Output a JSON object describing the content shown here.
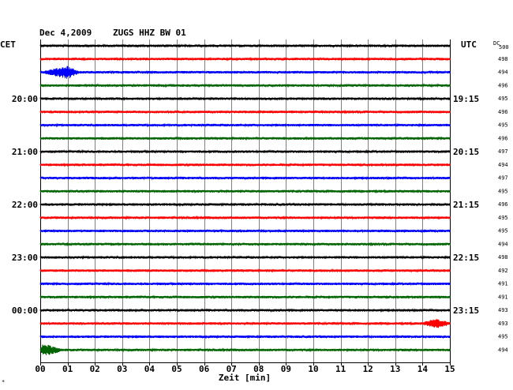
{
  "header": {
    "date": "Dec 4,2009",
    "station": "ZUGS HHZ BW 01",
    "left_tz": "CET",
    "right_tz": "UTC",
    "dc_label_top": "DC",
    "dc_label_bottom": "500"
  },
  "footer": {
    "xlabel": "Zeit [min]",
    "corner_mark": "*"
  },
  "chart_data": {
    "type": "line",
    "title": "Dec 4,2009 ZUGS HHZ BW 01",
    "xlabel": "Zeit [min]",
    "x_ticks": [
      "00",
      "01",
      "02",
      "03",
      "04",
      "05",
      "06",
      "07",
      "08",
      "09",
      "10",
      "11",
      "12",
      "13",
      "14",
      "15"
    ],
    "xlim": [
      0,
      15
    ],
    "grid": true,
    "trace_colors": [
      "#000000",
      "#ff0000",
      "#0000ff",
      "#006400"
    ],
    "left_hour_labels": [
      {
        "row": 4,
        "text": "20:00"
      },
      {
        "row": 8,
        "text": "21:00"
      },
      {
        "row": 12,
        "text": "22:00"
      },
      {
        "row": 16,
        "text": "23:00"
      },
      {
        "row": 20,
        "text": "00:00"
      }
    ],
    "right_hour_labels": [
      {
        "row": 4,
        "text": "19:15"
      },
      {
        "row": 8,
        "text": "20:15"
      },
      {
        "row": 12,
        "text": "21:15"
      },
      {
        "row": 16,
        "text": "22:15"
      },
      {
        "row": 20,
        "text": "23:15"
      }
    ],
    "dc_offsets": [
      "498",
      "494",
      "496",
      "495",
      "496",
      "495",
      "496",
      "497",
      "494",
      "497",
      "495",
      "496",
      "495",
      "495",
      "494",
      "498",
      "492",
      "491",
      "491",
      "493",
      "493",
      "495",
      "494"
    ],
    "events": [
      {
        "row": 2,
        "start_min": 0.1,
        "end_min": 1.4,
        "peak_min": 1.0,
        "amplitude": 7
      },
      {
        "row": 21,
        "start_min": 14.0,
        "end_min": 15.0,
        "peak_min": 14.5,
        "amplitude": 5
      },
      {
        "row": 23,
        "start_min": 0.0,
        "end_min": 0.8,
        "peak_min": 0.1,
        "amplitude": 7
      }
    ]
  }
}
